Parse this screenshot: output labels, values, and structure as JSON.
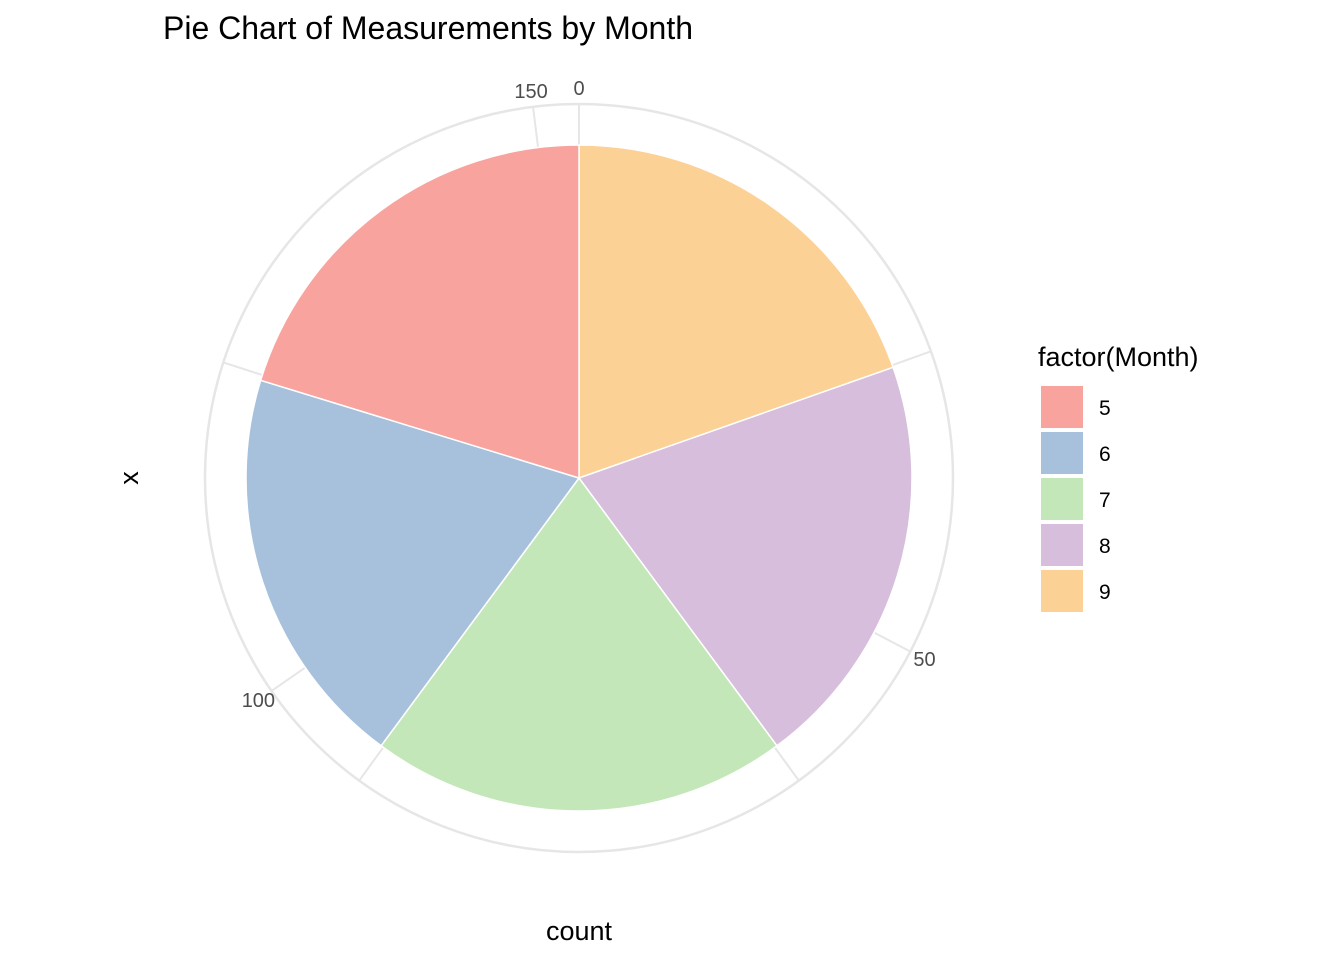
{
  "chart_data": {
    "type": "pie",
    "title": "Pie Chart of Measurements by Month",
    "xlabel": "count",
    "ylabel": "x",
    "categories": [
      "5",
      "6",
      "7",
      "8",
      "9"
    ],
    "values": [
      31,
      30,
      31,
      31,
      30
    ],
    "theta_ticks": [
      {
        "value": 0,
        "label": "0"
      },
      {
        "value": 50,
        "label": "50"
      },
      {
        "value": 100,
        "label": "100"
      },
      {
        "value": 150,
        "label": "150"
      }
    ],
    "legend": {
      "title": "factor(Month)",
      "position": "right",
      "items": [
        {
          "label": "5",
          "color": "#F8A39D"
        },
        {
          "label": "6",
          "color": "#A7C1DC"
        },
        {
          "label": "7",
          "color": "#C3E7B8"
        },
        {
          "label": "8",
          "color": "#D6BEDC"
        },
        {
          "label": "9",
          "color": "#FCD196"
        }
      ]
    },
    "grid": true,
    "direction": "clockwise-stacked-from-top-in-reverse"
  }
}
